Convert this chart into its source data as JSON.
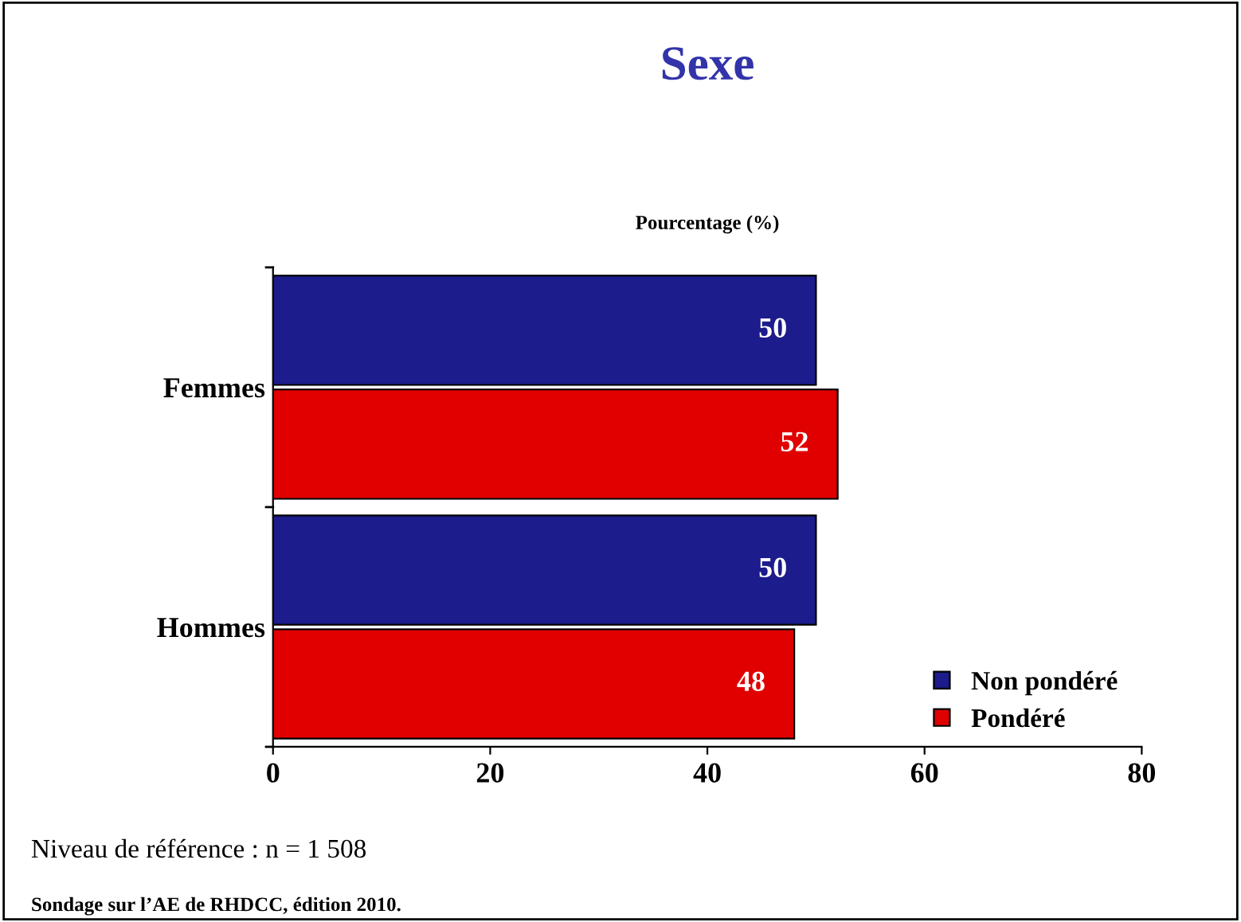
{
  "chart_data": {
    "type": "bar",
    "orientation": "horizontal",
    "title": "Sexe",
    "xlabel": "Pourcentage (%)",
    "categories": [
      "Femmes",
      "Hommes"
    ],
    "series": [
      {
        "name": "Non pondéré",
        "color": "#1c1c8c",
        "values": [
          50,
          50
        ]
      },
      {
        "name": "Pondéré",
        "color": "#e00000",
        "values": [
          52,
          48
        ]
      }
    ],
    "xlim": [
      0,
      80
    ],
    "xticks": [
      0,
      20,
      40,
      60,
      80
    ],
    "grid": false,
    "legend": "bottom right",
    "data_labels": true,
    "annotations": [
      "Niveau de référence : n = 1 508",
      "Sondage sur l’AE de RHDCC, édition 2010."
    ]
  }
}
